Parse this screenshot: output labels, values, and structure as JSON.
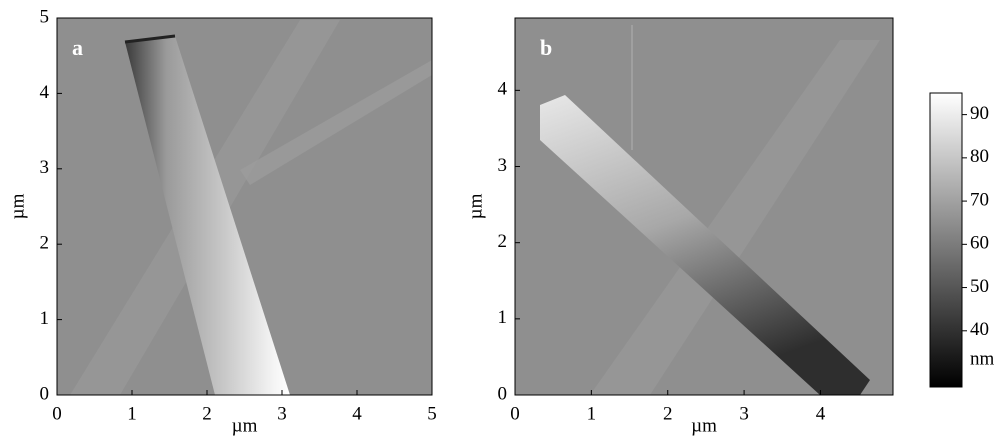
{
  "chart_data": [
    {
      "type": "image",
      "label": "a",
      "xlabel": "µm",
      "ylabel": "µm",
      "xlim": [
        0,
        5
      ],
      "ylim": [
        0,
        5
      ],
      "xticks": [
        0,
        1,
        2,
        3,
        4,
        5
      ],
      "yticks": [
        0,
        1,
        2,
        3,
        4,
        5
      ]
    },
    {
      "type": "image",
      "label": "b",
      "xlabel": "µm",
      "ylabel": "µm",
      "xlim": [
        0,
        4.95
      ],
      "ylim": [
        0,
        4.95
      ],
      "xticks": [
        0,
        1,
        2,
        3,
        4
      ],
      "yticks": [
        0,
        1,
        2,
        3,
        4
      ]
    },
    {
      "type": "colorbar",
      "label": "nm",
      "ylim": [
        27,
        95
      ],
      "yticks": [
        40,
        50,
        60,
        70,
        80,
        90
      ]
    }
  ]
}
